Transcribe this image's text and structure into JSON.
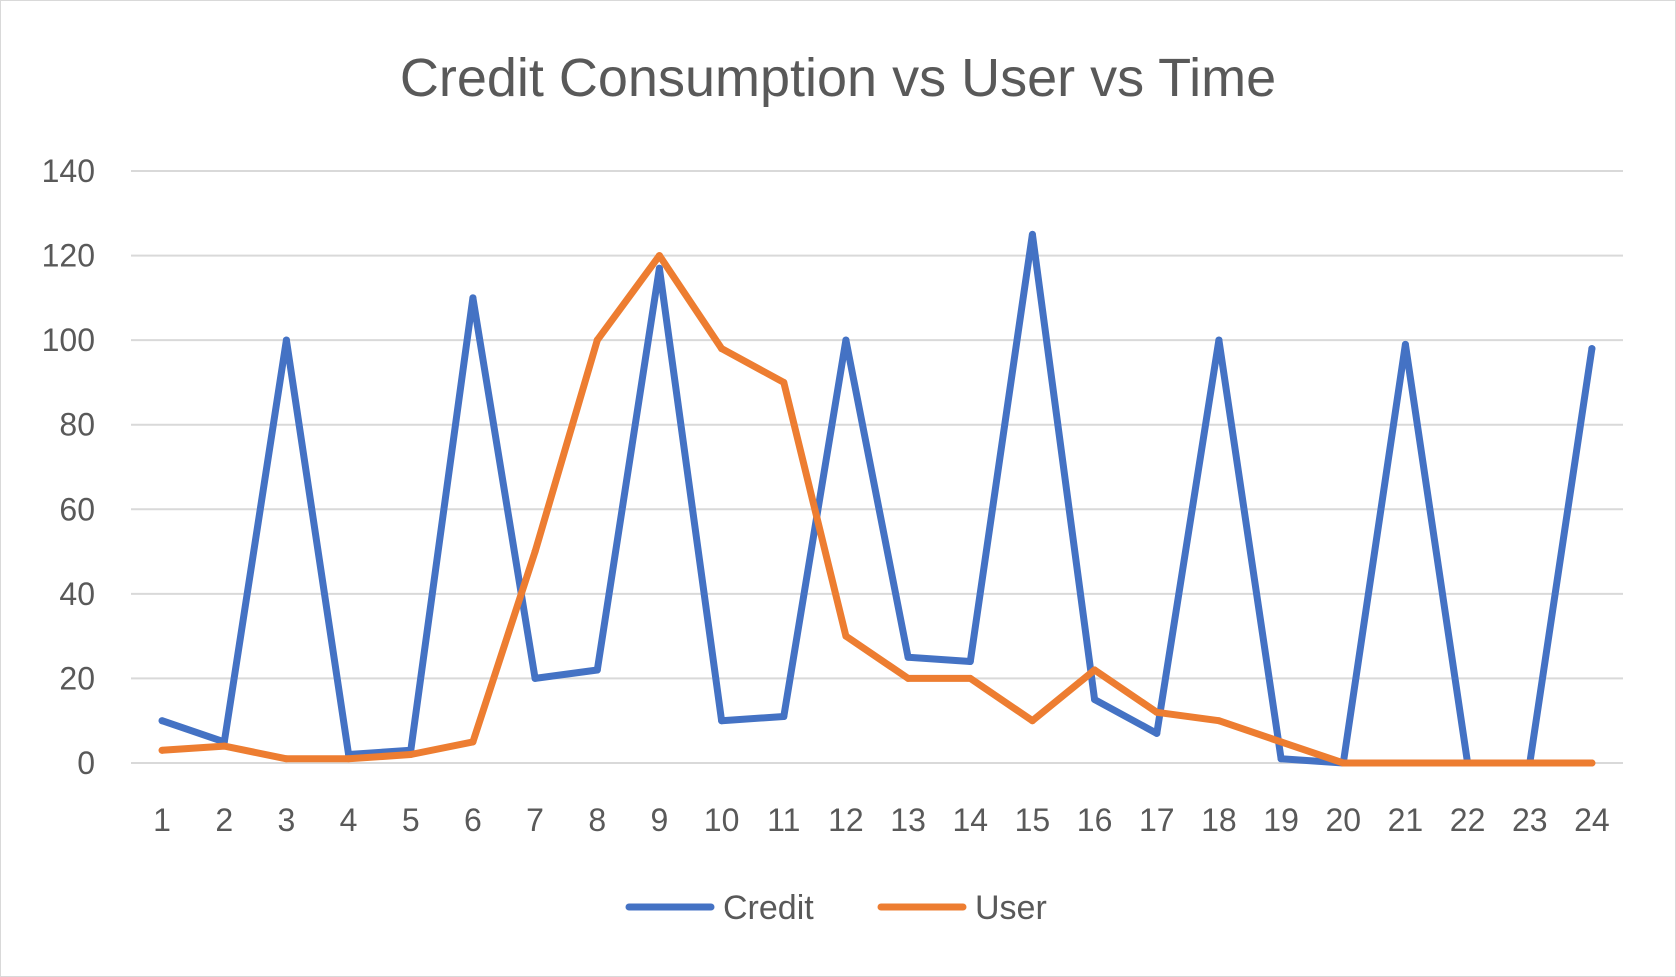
{
  "chart_data": {
    "type": "line",
    "title": "Credit Consumption vs User vs Time",
    "xlabel": "",
    "ylabel": "",
    "categories": [
      "1",
      "2",
      "3",
      "4",
      "5",
      "6",
      "7",
      "8",
      "9",
      "10",
      "11",
      "12",
      "13",
      "14",
      "15",
      "16",
      "17",
      "18",
      "19",
      "20",
      "21",
      "22",
      "23",
      "24"
    ],
    "ylim": [
      0,
      140
    ],
    "yticks": [
      0,
      20,
      40,
      60,
      80,
      100,
      120,
      140
    ],
    "grid": true,
    "legend_position": "bottom",
    "series": [
      {
        "name": "Credit",
        "color": "#4472C4",
        "values": [
          10,
          5,
          100,
          2,
          3,
          110,
          20,
          22,
          117,
          10,
          11,
          100,
          25,
          24,
          125,
          15,
          7,
          100,
          1,
          0,
          99,
          0,
          0,
          98
        ]
      },
      {
        "name": "User",
        "color": "#ED7D31",
        "values": [
          3,
          4,
          1,
          1,
          2,
          5,
          50,
          100,
          120,
          98,
          90,
          30,
          20,
          20,
          10,
          22,
          12,
          10,
          5,
          0,
          0,
          0,
          0,
          0
        ]
      }
    ]
  }
}
